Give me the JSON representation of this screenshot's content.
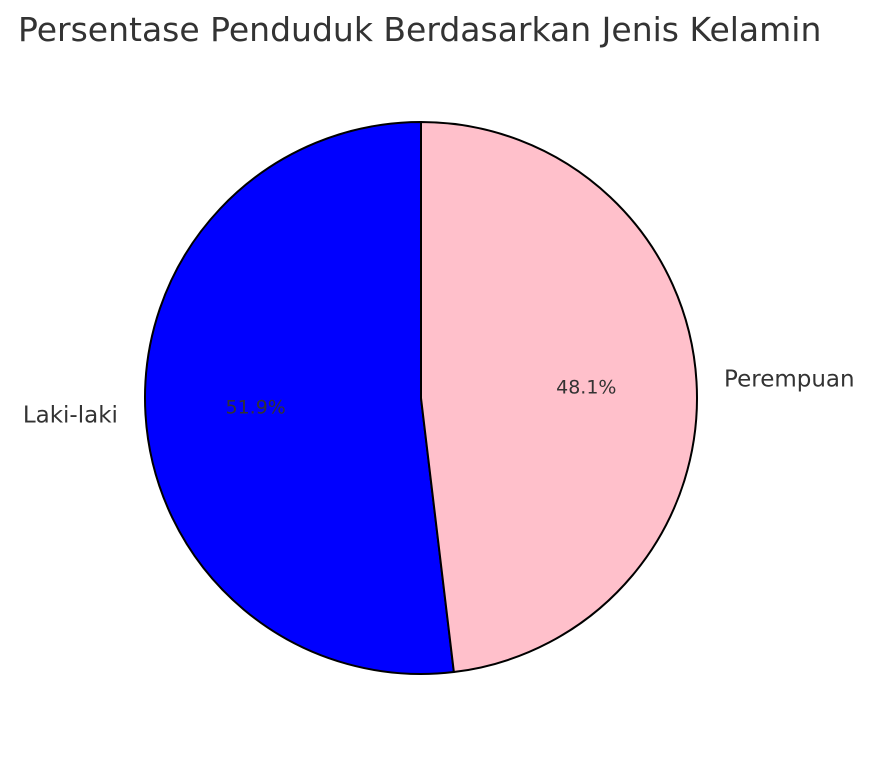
{
  "chart_data": {
    "type": "pie",
    "title": "Persentase Penduduk Berdasarkan Jenis Kelamin",
    "categories": [
      "Laki-laki",
      "Perempuan"
    ],
    "values": [
      51.9,
      48.1
    ],
    "value_labels": [
      "51.9%",
      "48.1%"
    ],
    "colors": [
      "#0000ff",
      "#ffc0cb"
    ],
    "edge_color": "#000000",
    "start_angle": "top, counter-clockwise"
  }
}
